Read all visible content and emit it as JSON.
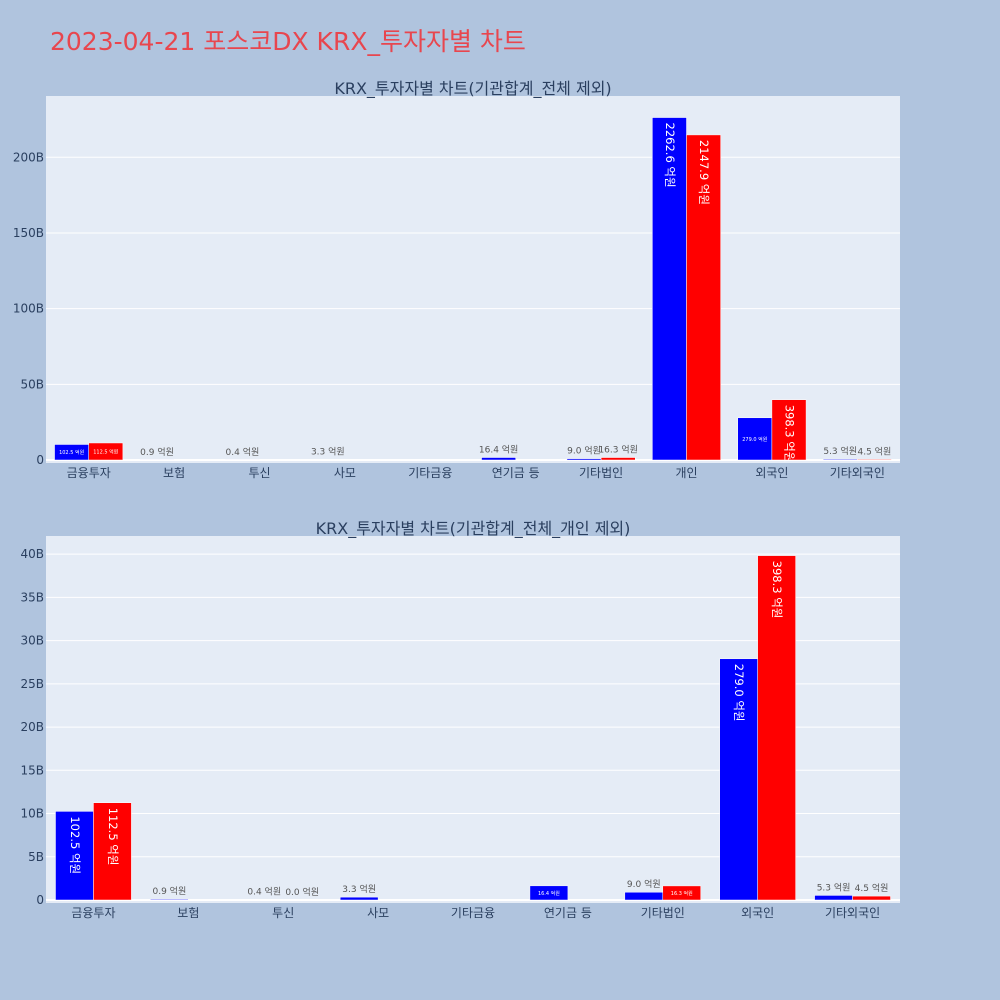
{
  "page_title": "2023-04-21 포스코DX KRX_투자자별 차트",
  "colors": {
    "buy": "#0000ff",
    "sell": "#ff0000",
    "plot_bg": "#e5ecf6",
    "paper_bg": "#b0c4de",
    "title": "#e8464e"
  },
  "chart_data": [
    {
      "type": "bar",
      "title": "KRX_투자자별 차트(기관합계_전체 제외)",
      "categories": [
        "금융투자",
        "보험",
        "투신",
        "사모",
        "기타금융",
        "연기금 등",
        "기타법인",
        "개인",
        "외국인",
        "기타외국인"
      ],
      "series": [
        {
          "color": "#0000ff",
          "values": [
            10.25,
            0.09,
            0.04,
            0.33,
            null,
            1.64,
            0.9,
            226.26,
            27.9,
            0.53
          ],
          "labels": [
            "102.5 억원",
            "0.9 억원",
            "0.4 억원",
            "3.3 억원",
            "",
            "16.4 억원",
            "9.0 억원",
            "2262.6 억원",
            "279.0 억원",
            "5.3 억원"
          ]
        },
        {
          "color": "#ff0000",
          "values": [
            11.25,
            null,
            0.0,
            null,
            null,
            null,
            1.63,
            214.79,
            39.83,
            0.45
          ],
          "labels": [
            "112.5 억원",
            "",
            "",
            "",
            "",
            "",
            "16.3 억원",
            "2147.9 억원",
            "398.3 억원",
            "4.5 억원"
          ]
        }
      ],
      "yticks": [
        0,
        50,
        100,
        150,
        200
      ],
      "ytick_labels": [
        "0",
        "50B",
        "100B",
        "150B",
        "200B"
      ],
      "ylim": [
        0,
        240.5
      ],
      "grid": true
    },
    {
      "type": "bar",
      "title": "KRX_투자자별 차트(기관합계_전체_개인 제외)",
      "categories": [
        "금융투자",
        "보험",
        "투신",
        "사모",
        "기타금융",
        "연기금 등",
        "기타법인",
        "외국인",
        "기타외국인"
      ],
      "series": [
        {
          "color": "#0000ff",
          "values": [
            10.25,
            0.09,
            0.04,
            0.33,
            null,
            1.64,
            0.9,
            27.9,
            0.53
          ],
          "labels": [
            "102.5 억원",
            "0.9 억원",
            "0.4 억원",
            "3.3 억원",
            "",
            "16.4 억원",
            "9.0 억원",
            "279.0 억원",
            "5.3 억원"
          ]
        },
        {
          "color": "#ff0000",
          "values": [
            11.25,
            null,
            0.0,
            null,
            null,
            null,
            1.63,
            39.83,
            0.45
          ],
          "labels": [
            "112.5 억원",
            "",
            "0.0 억원",
            "",
            "",
            "",
            "16.3 억원",
            "398.3 억원",
            "4.5 억원"
          ]
        }
      ],
      "yticks": [
        0,
        5,
        10,
        15,
        20,
        25,
        30,
        35,
        40
      ],
      "ytick_labels": [
        "0",
        "5B",
        "10B",
        "15B",
        "20B",
        "25B",
        "30B",
        "35B",
        "40B"
      ],
      "ylim": [
        0,
        42.1
      ],
      "grid": true
    }
  ]
}
